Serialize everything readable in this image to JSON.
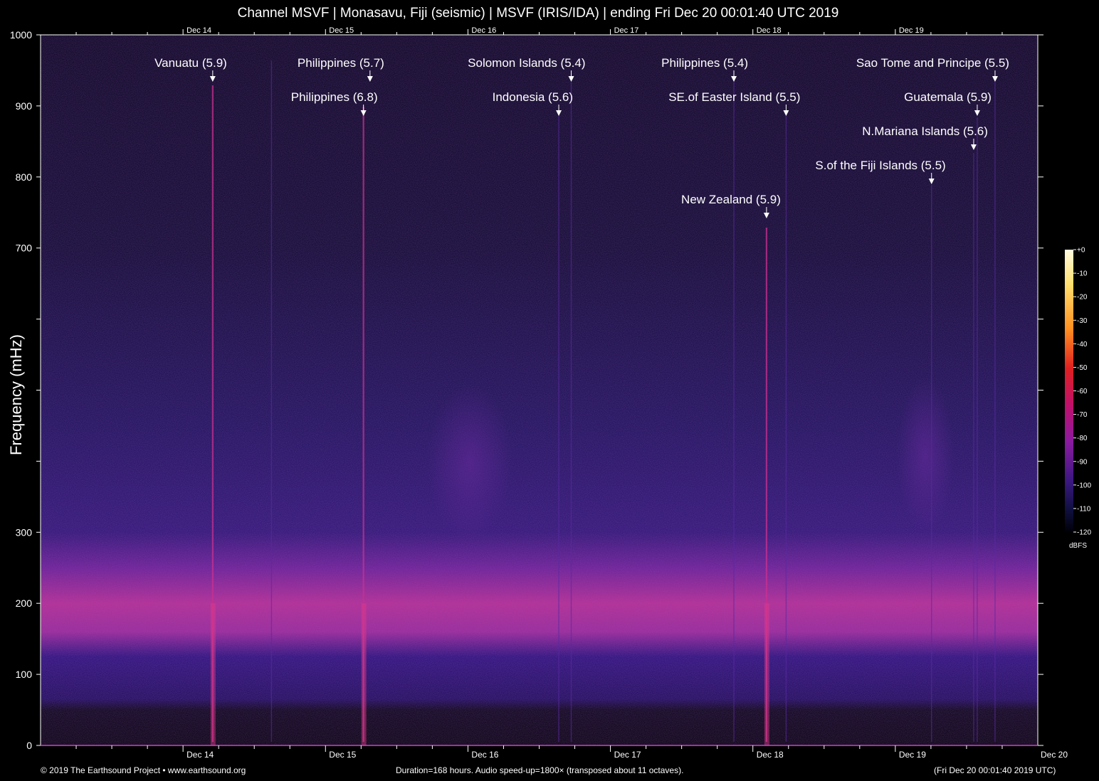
{
  "title": "Channel MSVF | Monasavu, Fiji (seismic) | MSVF (IRIS/IDA) | ending Fri Dec 20 00:01:40 UTC 2019",
  "footer": {
    "copyright": "© 2019 The Earthsound Project • www.earthsound.org",
    "duration": "Duration=168 hours. Audio speed-up=1800× (transposed about 11 octaves).",
    "timestamp": "(Fri Dec 20 00:01:40 2019 UTC)"
  },
  "colors": {
    "background": "#000000",
    "axis": "#ffffff",
    "spectrogram_low": "#0a0a30",
    "spectrogram_mid": "#5a1a90",
    "spectrogram_high": "#d0308a"
  },
  "chart_data": {
    "type": "heatmap",
    "title": "Channel MSVF | Monasavu, Fiji (seismic) | MSVF (IRIS/IDA) | ending Fri Dec 20 00:01:40 UTC 2019",
    "xlabel": "",
    "ylabel": "Frequency (mHz)",
    "x_range_days": [
      "Dec 13 00:01:40",
      "Dec 20 00:01:40"
    ],
    "x_ticks": [
      "Dec 14",
      "Dec 15",
      "Dec 16",
      "Dec 17",
      "Dec 18",
      "Dec 19"
    ],
    "x_tick_last": "Dec 20",
    "x_tick_positions_hours": [
      24,
      48,
      72,
      96,
      120,
      144,
      168
    ],
    "ylim": [
      0,
      1000
    ],
    "y_ticks": [
      {
        "value": 0,
        "label": "0"
      },
      {
        "value": 100,
        "label": "100"
      },
      {
        "value": 200,
        "label": "200"
      },
      {
        "value": 300,
        "label": "300"
      },
      {
        "value": 400,
        "label": ""
      },
      {
        "value": 500,
        "label": ""
      },
      {
        "value": 600,
        "label": ""
      },
      {
        "value": 700,
        "label": "700"
      },
      {
        "value": 800,
        "label": "800"
      },
      {
        "value": 900,
        "label": "900"
      },
      {
        "value": 1000,
        "label": "1000"
      }
    ],
    "colorbar": {
      "unit": "dBFS",
      "ticks": [
        "+0",
        "-10",
        "-20",
        "-30",
        "-40",
        "-50",
        "-60",
        "-70",
        "-80",
        "-90",
        "-100",
        "-110",
        "-120"
      ],
      "range": [
        -120,
        0
      ]
    },
    "events": [
      {
        "label": "Vanuatu (5.9)",
        "hours": 29.0,
        "row": 0
      },
      {
        "label": "Philippines (5.7)",
        "hours": 55.5,
        "row": 0
      },
      {
        "label": "Philippines (6.8)",
        "hours": 54.4,
        "row": 1
      },
      {
        "label": "Solomon Islands (5.4)",
        "hours": 89.4,
        "row": 0
      },
      {
        "label": "Indonesia (5.6)",
        "hours": 87.3,
        "row": 1
      },
      {
        "label": "Philippines (5.4)",
        "hours": 116.8,
        "row": 0
      },
      {
        "label": "SE.of Easter Island (5.5)",
        "hours": 125.6,
        "row": 1
      },
      {
        "label": "New Zealand (5.9)",
        "hours": 122.3,
        "row": 4
      },
      {
        "label": "Sao Tome and Principe (5.5)",
        "hours": 160.8,
        "row": 0
      },
      {
        "label": "Guatemala (5.9)",
        "hours": 157.8,
        "row": 1
      },
      {
        "label": "N.Mariana Islands (5.6)",
        "hours": 157.2,
        "row": 2
      },
      {
        "label": "S.of the Fiji Islands (5.5)",
        "hours": 150.1,
        "row": 3
      }
    ]
  }
}
